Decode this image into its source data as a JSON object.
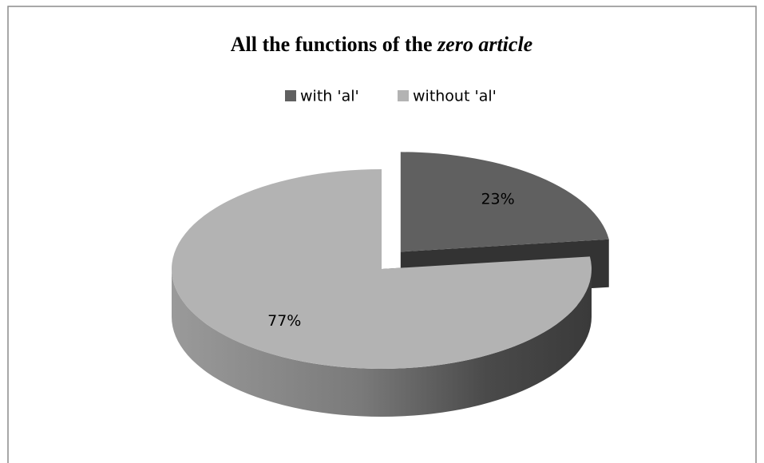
{
  "chart_data": {
    "type": "pie",
    "title": {
      "plain": "All the functions of the",
      "italic": "zero article"
    },
    "categories": [
      "with 'al'",
      "without 'al'"
    ],
    "values": [
      23,
      77
    ],
    "value_labels": [
      "23%",
      "77%"
    ],
    "colors": [
      "#606060",
      "#b3b3b3"
    ],
    "legend": "top",
    "exploded": [
      0
    ]
  }
}
